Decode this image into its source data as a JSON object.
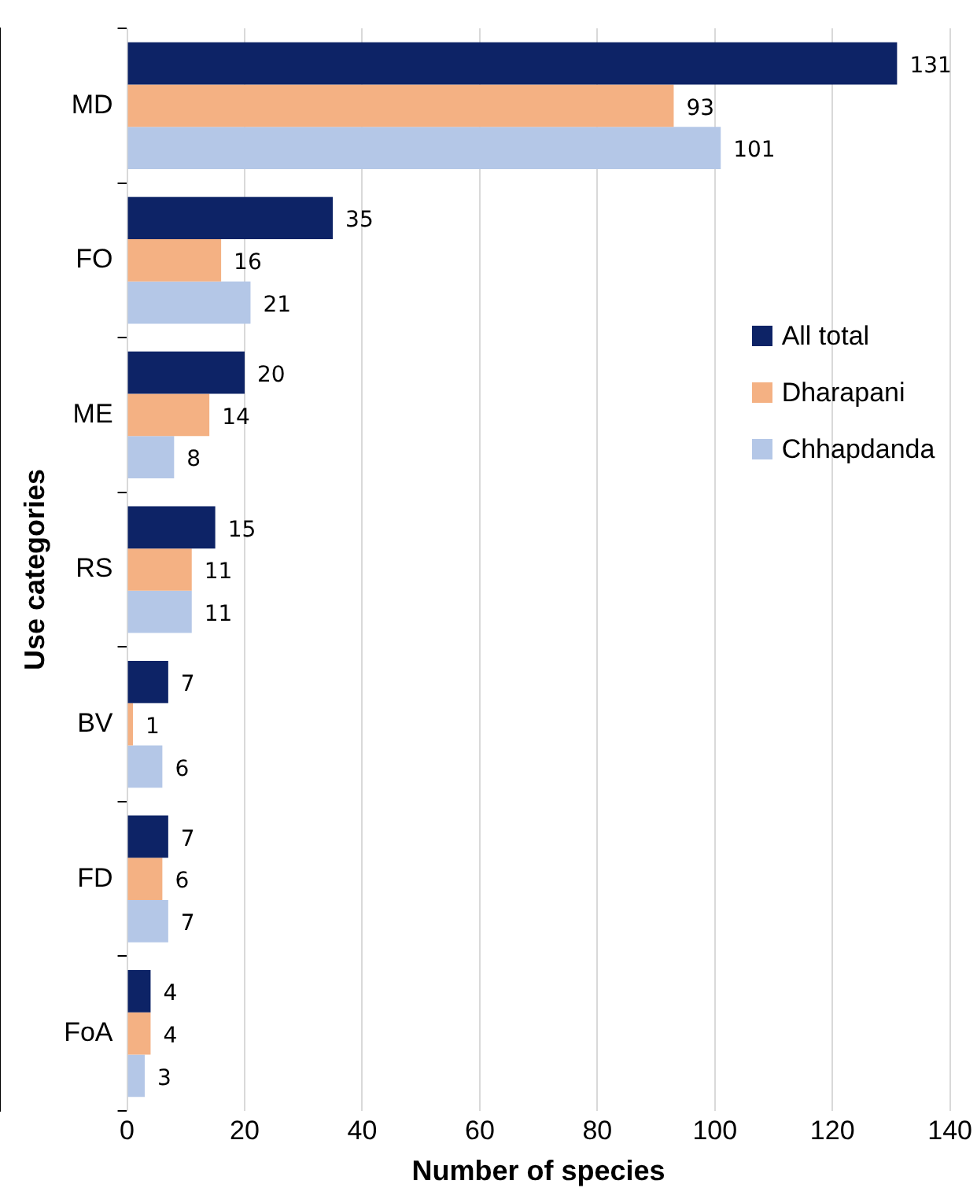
{
  "chart_data": {
    "type": "bar",
    "orientation": "horizontal",
    "xlabel": "Number of species",
    "ylabel": "Use categories",
    "categories": [
      "MD",
      "FO",
      "ME",
      "RS",
      "BV",
      "FD",
      "FoA"
    ],
    "series": [
      {
        "name": "All total",
        "color": "#0d2366",
        "values": [
          131,
          35,
          20,
          15,
          7,
          7,
          4
        ]
      },
      {
        "name": "Dharapani",
        "color": "#f4b183",
        "values": [
          93,
          16,
          14,
          11,
          1,
          6,
          4
        ]
      },
      {
        "name": "Chhapdanda",
        "color": "#b4c7e7",
        "values": [
          101,
          21,
          8,
          11,
          6,
          7,
          3
        ]
      }
    ],
    "xlim": [
      0,
      140
    ],
    "xticks": [
      0,
      20,
      40,
      60,
      80,
      100,
      120,
      140
    ],
    "grid": "x",
    "legend": "right",
    "data_labels": true
  }
}
